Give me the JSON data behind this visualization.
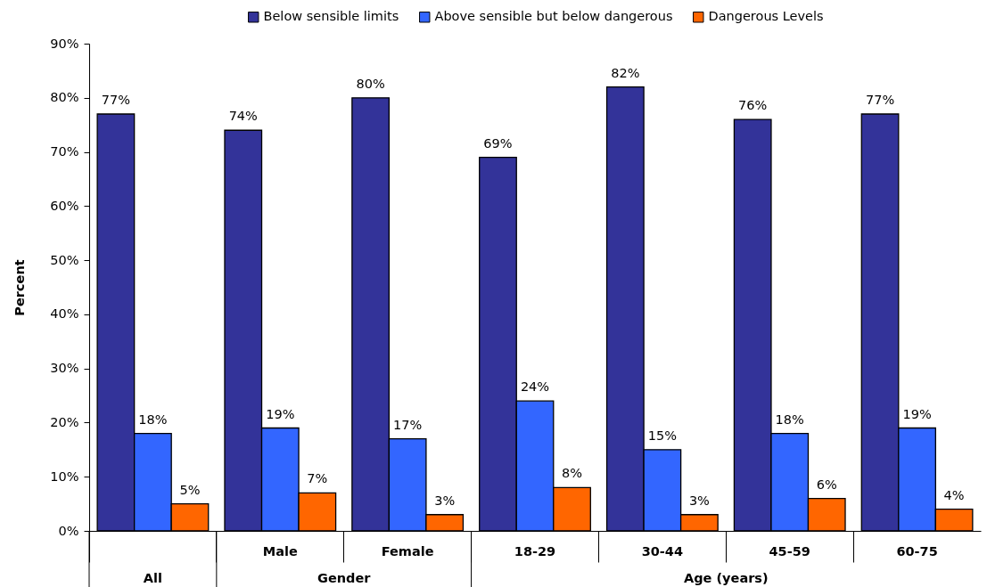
{
  "chart_data": {
    "type": "bar",
    "ylabel": "Percent",
    "legend": "top",
    "categories": [
      null,
      "Male",
      "Female",
      "18-29",
      "30-44",
      "45-59",
      "60-75"
    ],
    "series": [
      {
        "name": "Below sensible limits",
        "color": "#333399",
        "values": [
          77,
          74,
          80,
          69,
          82,
          76,
          77
        ],
        "value_labels": [
          "77%",
          "74%",
          "80%",
          "69%",
          "82%",
          "76%",
          "77%"
        ]
      },
      {
        "name": "Above sensible but below dangerous",
        "color": "#3366ff",
        "values": [
          18,
          19,
          17,
          24,
          15,
          18,
          19
        ],
        "value_labels": [
          "18%",
          "19%",
          "17%",
          "24%",
          "15%",
          "18%",
          "19%"
        ]
      },
      {
        "name": "Dangerous Levels",
        "color": "#ff6600",
        "values": [
          5,
          7,
          3,
          8,
          3,
          6,
          4
        ],
        "value_labels": [
          "5%",
          "7%",
          "3%",
          "8%",
          "3%",
          "6%",
          "4%"
        ]
      }
    ],
    "ylim": [
      0,
      90
    ],
    "yticks": [
      {
        "value": 0,
        "label": "0%"
      },
      {
        "value": 10,
        "label": "10%"
      },
      {
        "value": 20,
        "label": "20%"
      },
      {
        "value": 30,
        "label": "30%"
      },
      {
        "value": 40,
        "label": "40%"
      },
      {
        "value": 50,
        "label": "50%"
      },
      {
        "value": 60,
        "label": "60%"
      },
      {
        "value": 70,
        "label": "70%"
      },
      {
        "value": 80,
        "label": "80%"
      },
      {
        "value": 90,
        "label": "90%"
      }
    ],
    "annotations": [
      "All",
      "Gender",
      "Age (years)"
    ]
  }
}
